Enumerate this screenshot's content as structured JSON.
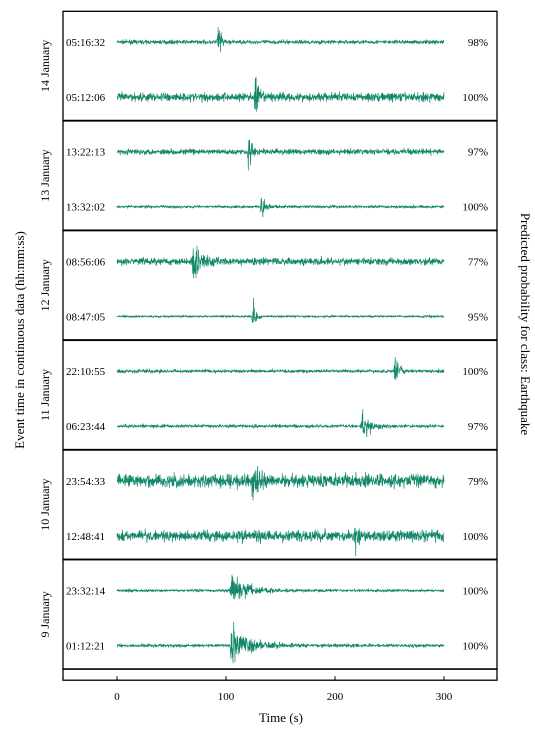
{
  "chart_data": {
    "type": "line",
    "xlabel": "Time (s)",
    "ylabel_left": "Event time in continuous data (hh:mm:ss)",
    "ylabel_right": "Predicted probability for class: Earthquake",
    "xlim": [
      0,
      300
    ],
    "xticks": [
      "0",
      "100",
      "200",
      "300"
    ],
    "color": "#12876a",
    "panels": [
      {
        "date": "14 January",
        "traces": [
          {
            "time": "05:16:32",
            "prob": "98%",
            "event_s": 93,
            "amp": 0.95,
            "dur": 6,
            "noise": 0.07
          },
          {
            "time": "05:12:06",
            "prob": "100%",
            "event_s": 127,
            "amp": 0.7,
            "dur": 8,
            "noise": 0.16
          }
        ]
      },
      {
        "date": "13 January",
        "traces": [
          {
            "time": "13:22:13",
            "prob": "97%",
            "event_s": 121,
            "amp": 0.8,
            "dur": 7,
            "noise": 0.1
          },
          {
            "time": "13:32:02",
            "prob": "100%",
            "event_s": 133,
            "amp": 0.55,
            "dur": 8,
            "noise": 0.05
          }
        ]
      },
      {
        "date": "12 January",
        "traces": [
          {
            "time": "08:56:06",
            "prob": "77%",
            "event_s": 70,
            "amp": 0.75,
            "dur": 22,
            "noise": 0.13
          },
          {
            "time": "08:47:05",
            "prob": "95%",
            "event_s": 125,
            "amp": 0.6,
            "dur": 7,
            "noise": 0.04
          }
        ]
      },
      {
        "date": "11 January",
        "traces": [
          {
            "time": "22:10:55",
            "prob": "100%",
            "event_s": 255,
            "amp": 0.65,
            "dur": 9,
            "noise": 0.06
          },
          {
            "time": "06:23:44",
            "prob": "97%",
            "event_s": 225,
            "amp": 0.75,
            "dur": 18,
            "noise": 0.06
          }
        ]
      },
      {
        "date": "10 January",
        "traces": [
          {
            "time": "23:54:33",
            "prob": "79%",
            "event_s": 125,
            "amp": 0.7,
            "dur": 12,
            "noise": 0.24
          },
          {
            "time": "12:48:41",
            "prob": "100%",
            "event_s": 219,
            "amp": 0.8,
            "dur": 4,
            "noise": 0.2
          }
        ]
      },
      {
        "date": "9 January",
        "traces": [
          {
            "time": "23:32:14",
            "prob": "100%",
            "event_s": 105,
            "amp": 0.55,
            "dur": 40,
            "noise": 0.05
          },
          {
            "time": "01:12:21",
            "prob": "100%",
            "event_s": 105,
            "amp": 0.75,
            "dur": 45,
            "noise": 0.06
          }
        ]
      }
    ]
  }
}
